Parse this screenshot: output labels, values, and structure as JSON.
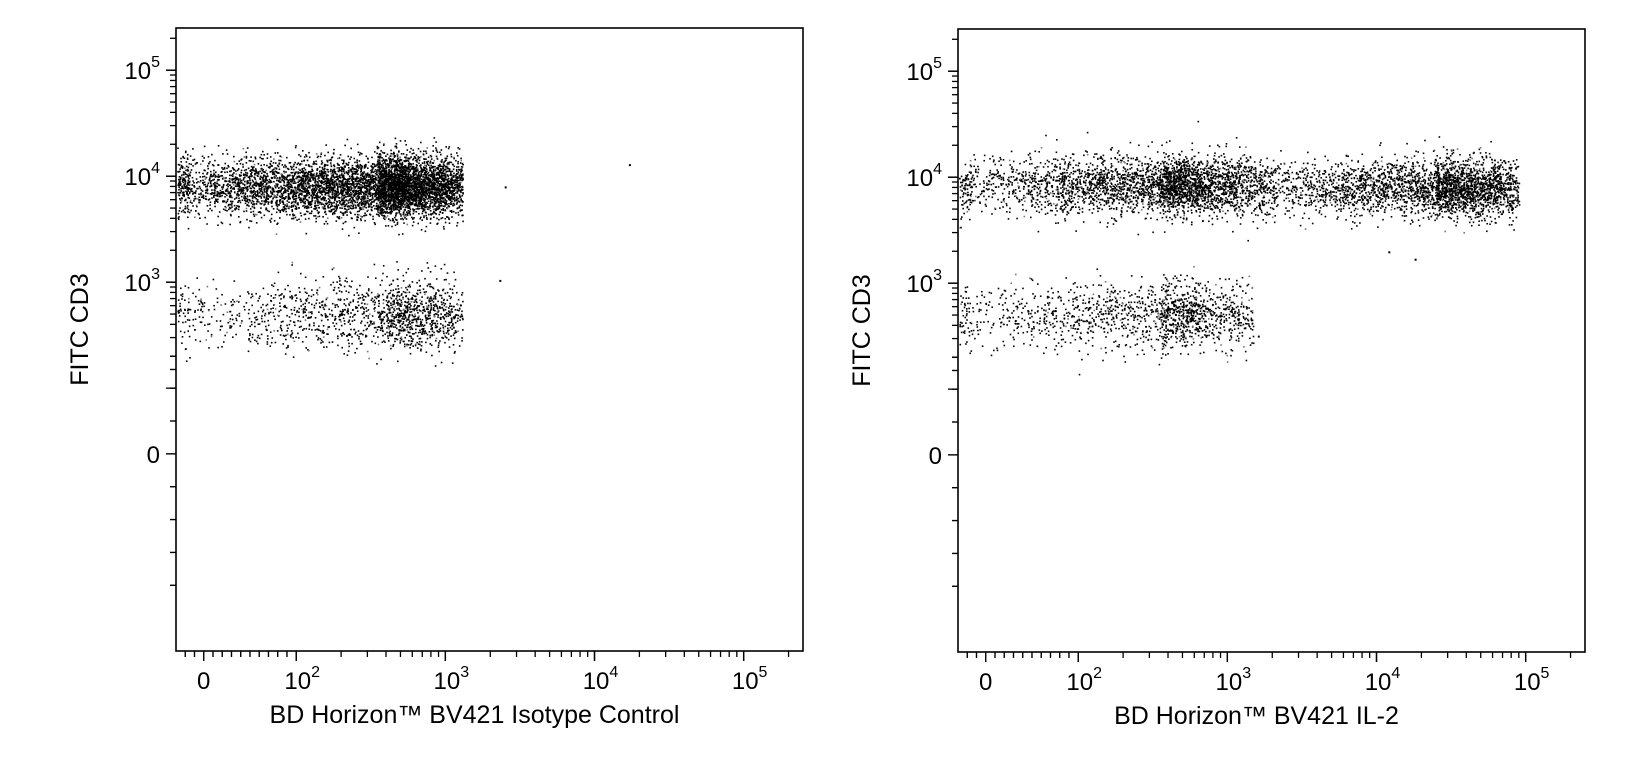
{
  "chart_data": [
    {
      "type": "scatter",
      "title": "",
      "xlabel": "BD Horizon™ BV421 Isotype Control",
      "ylabel": "FITC CD3",
      "x_scale": "biexponential",
      "y_scale": "biexponential",
      "xlim": [
        -30,
        250000
      ],
      "ylim": [
        -300,
        250000
      ],
      "x_ticks": [
        {
          "label": "0",
          "value": 0
        },
        {
          "label": "10",
          "sup": "2",
          "value": 100
        },
        {
          "label": "10",
          "sup": "3",
          "value": 1000
        },
        {
          "label": "10",
          "sup": "4",
          "value": 10000
        },
        {
          "label": "10",
          "sup": "5",
          "value": 100000
        }
      ],
      "y_ticks": [
        {
          "label": "0",
          "value": 0
        },
        {
          "label": "10",
          "sup": "3",
          "value": 1000
        },
        {
          "label": "10",
          "sup": "4",
          "value": 10000
        },
        {
          "label": "10",
          "sup": "5",
          "value": 100000
        }
      ],
      "populations": [
        {
          "x_range": [
            -40,
            1300
          ],
          "x_peak": 350,
          "y_center": 8000,
          "y_spread": 0.14,
          "count": 6500
        },
        {
          "x_range": [
            -40,
            1300
          ],
          "x_peak": 400,
          "y_center": 500,
          "y_spread": 0.16,
          "count": 1500
        }
      ],
      "outliers": [
        [
          2500,
          8000
        ],
        [
          17000,
          13000
        ],
        [
          2300,
          1050
        ]
      ]
    },
    {
      "type": "scatter",
      "title": "",
      "xlabel": "BD Horizon™ BV421 IL-2",
      "ylabel": "FITC CD3",
      "x_scale": "biexponential",
      "y_scale": "biexponential",
      "xlim": [
        -30,
        250000
      ],
      "ylim": [
        -300,
        250000
      ],
      "x_ticks": [
        {
          "label": "0",
          "value": 0
        },
        {
          "label": "10",
          "sup": "2",
          "value": 100
        },
        {
          "label": "10",
          "sup": "3",
          "value": 1000
        },
        {
          "label": "10",
          "sup": "4",
          "value": 10000
        },
        {
          "label": "10",
          "sup": "5",
          "value": 100000
        }
      ],
      "y_ticks": [
        {
          "label": "0",
          "value": 0
        },
        {
          "label": "10",
          "sup": "3",
          "value": 1000
        },
        {
          "label": "10",
          "sup": "4",
          "value": 10000
        },
        {
          "label": "10",
          "sup": "5",
          "value": 100000
        }
      ],
      "populations": [
        {
          "x_range": [
            -40,
            1500
          ],
          "x_peak": 350,
          "y_center": 8500,
          "y_spread": 0.14,
          "count": 3300
        },
        {
          "x_range": [
            1500,
            90000
          ],
          "x_peak": 25000,
          "y_center": 8000,
          "y_spread": 0.13,
          "count": 3000
        },
        {
          "x_range": [
            -40,
            1500
          ],
          "x_peak": 350,
          "y_center": 500,
          "y_spread": 0.16,
          "count": 1500
        }
      ],
      "outliers": [
        [
          12000,
          2000
        ],
        [
          18000,
          1700
        ],
        [
          1600,
          320
        ]
      ]
    }
  ]
}
